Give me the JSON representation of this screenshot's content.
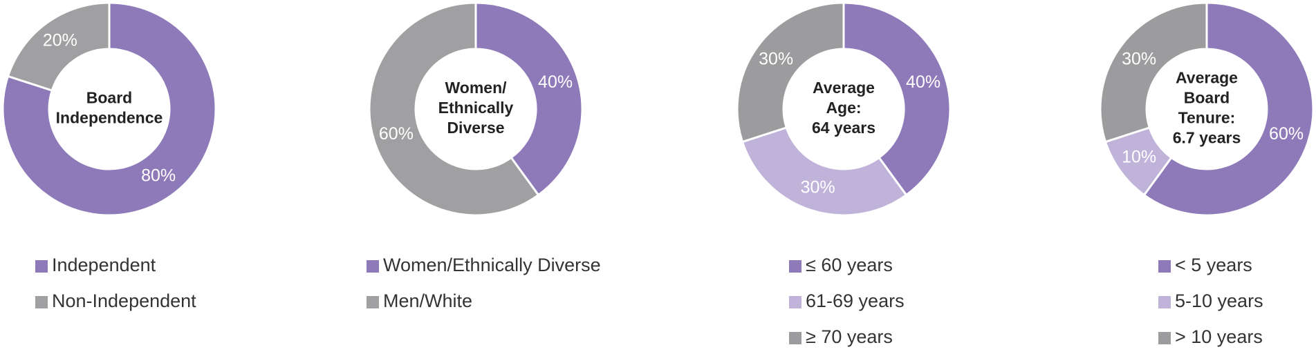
{
  "chart_data": [
    {
      "type": "donut",
      "title": [
        "Board",
        "Independence"
      ],
      "categories": [
        "Independent",
        "Non-Independent"
      ],
      "values": [
        80,
        20
      ],
      "value_labels": [
        "80%",
        "20%"
      ],
      "colors": [
        "#8e79b9",
        "#a0a0a3"
      ]
    },
    {
      "type": "donut",
      "title": [
        "Women/",
        "Ethnically",
        "Diverse"
      ],
      "categories": [
        "Women/Ethnically Diverse",
        "Men/White"
      ],
      "values": [
        40,
        60
      ],
      "value_labels": [
        "40%",
        "60%"
      ],
      "colors": [
        "#8e79b9",
        "#a0a0a3"
      ]
    },
    {
      "type": "donut",
      "title": [
        "Average",
        "Age:",
        "64 years"
      ],
      "categories": [
        "≤ 60 years",
        "61-69 years",
        "≥ 70 years"
      ],
      "values": [
        40,
        30,
        30
      ],
      "value_labels": [
        "40%",
        "30%",
        "30%"
      ],
      "colors": [
        "#8e79b9",
        "#c0b3da",
        "#9c9c9f"
      ]
    },
    {
      "type": "donut",
      "title": [
        "Average",
        "Board",
        "Tenure:",
        "6.7 years"
      ],
      "categories": [
        "< 5 years",
        "5-10 years",
        "> 10 years"
      ],
      "values": [
        60,
        10,
        30
      ],
      "value_labels": [
        "60%",
        "10%",
        "30%"
      ],
      "colors": [
        "#8e79b9",
        "#c0b3da",
        "#9c9c9f"
      ]
    }
  ]
}
